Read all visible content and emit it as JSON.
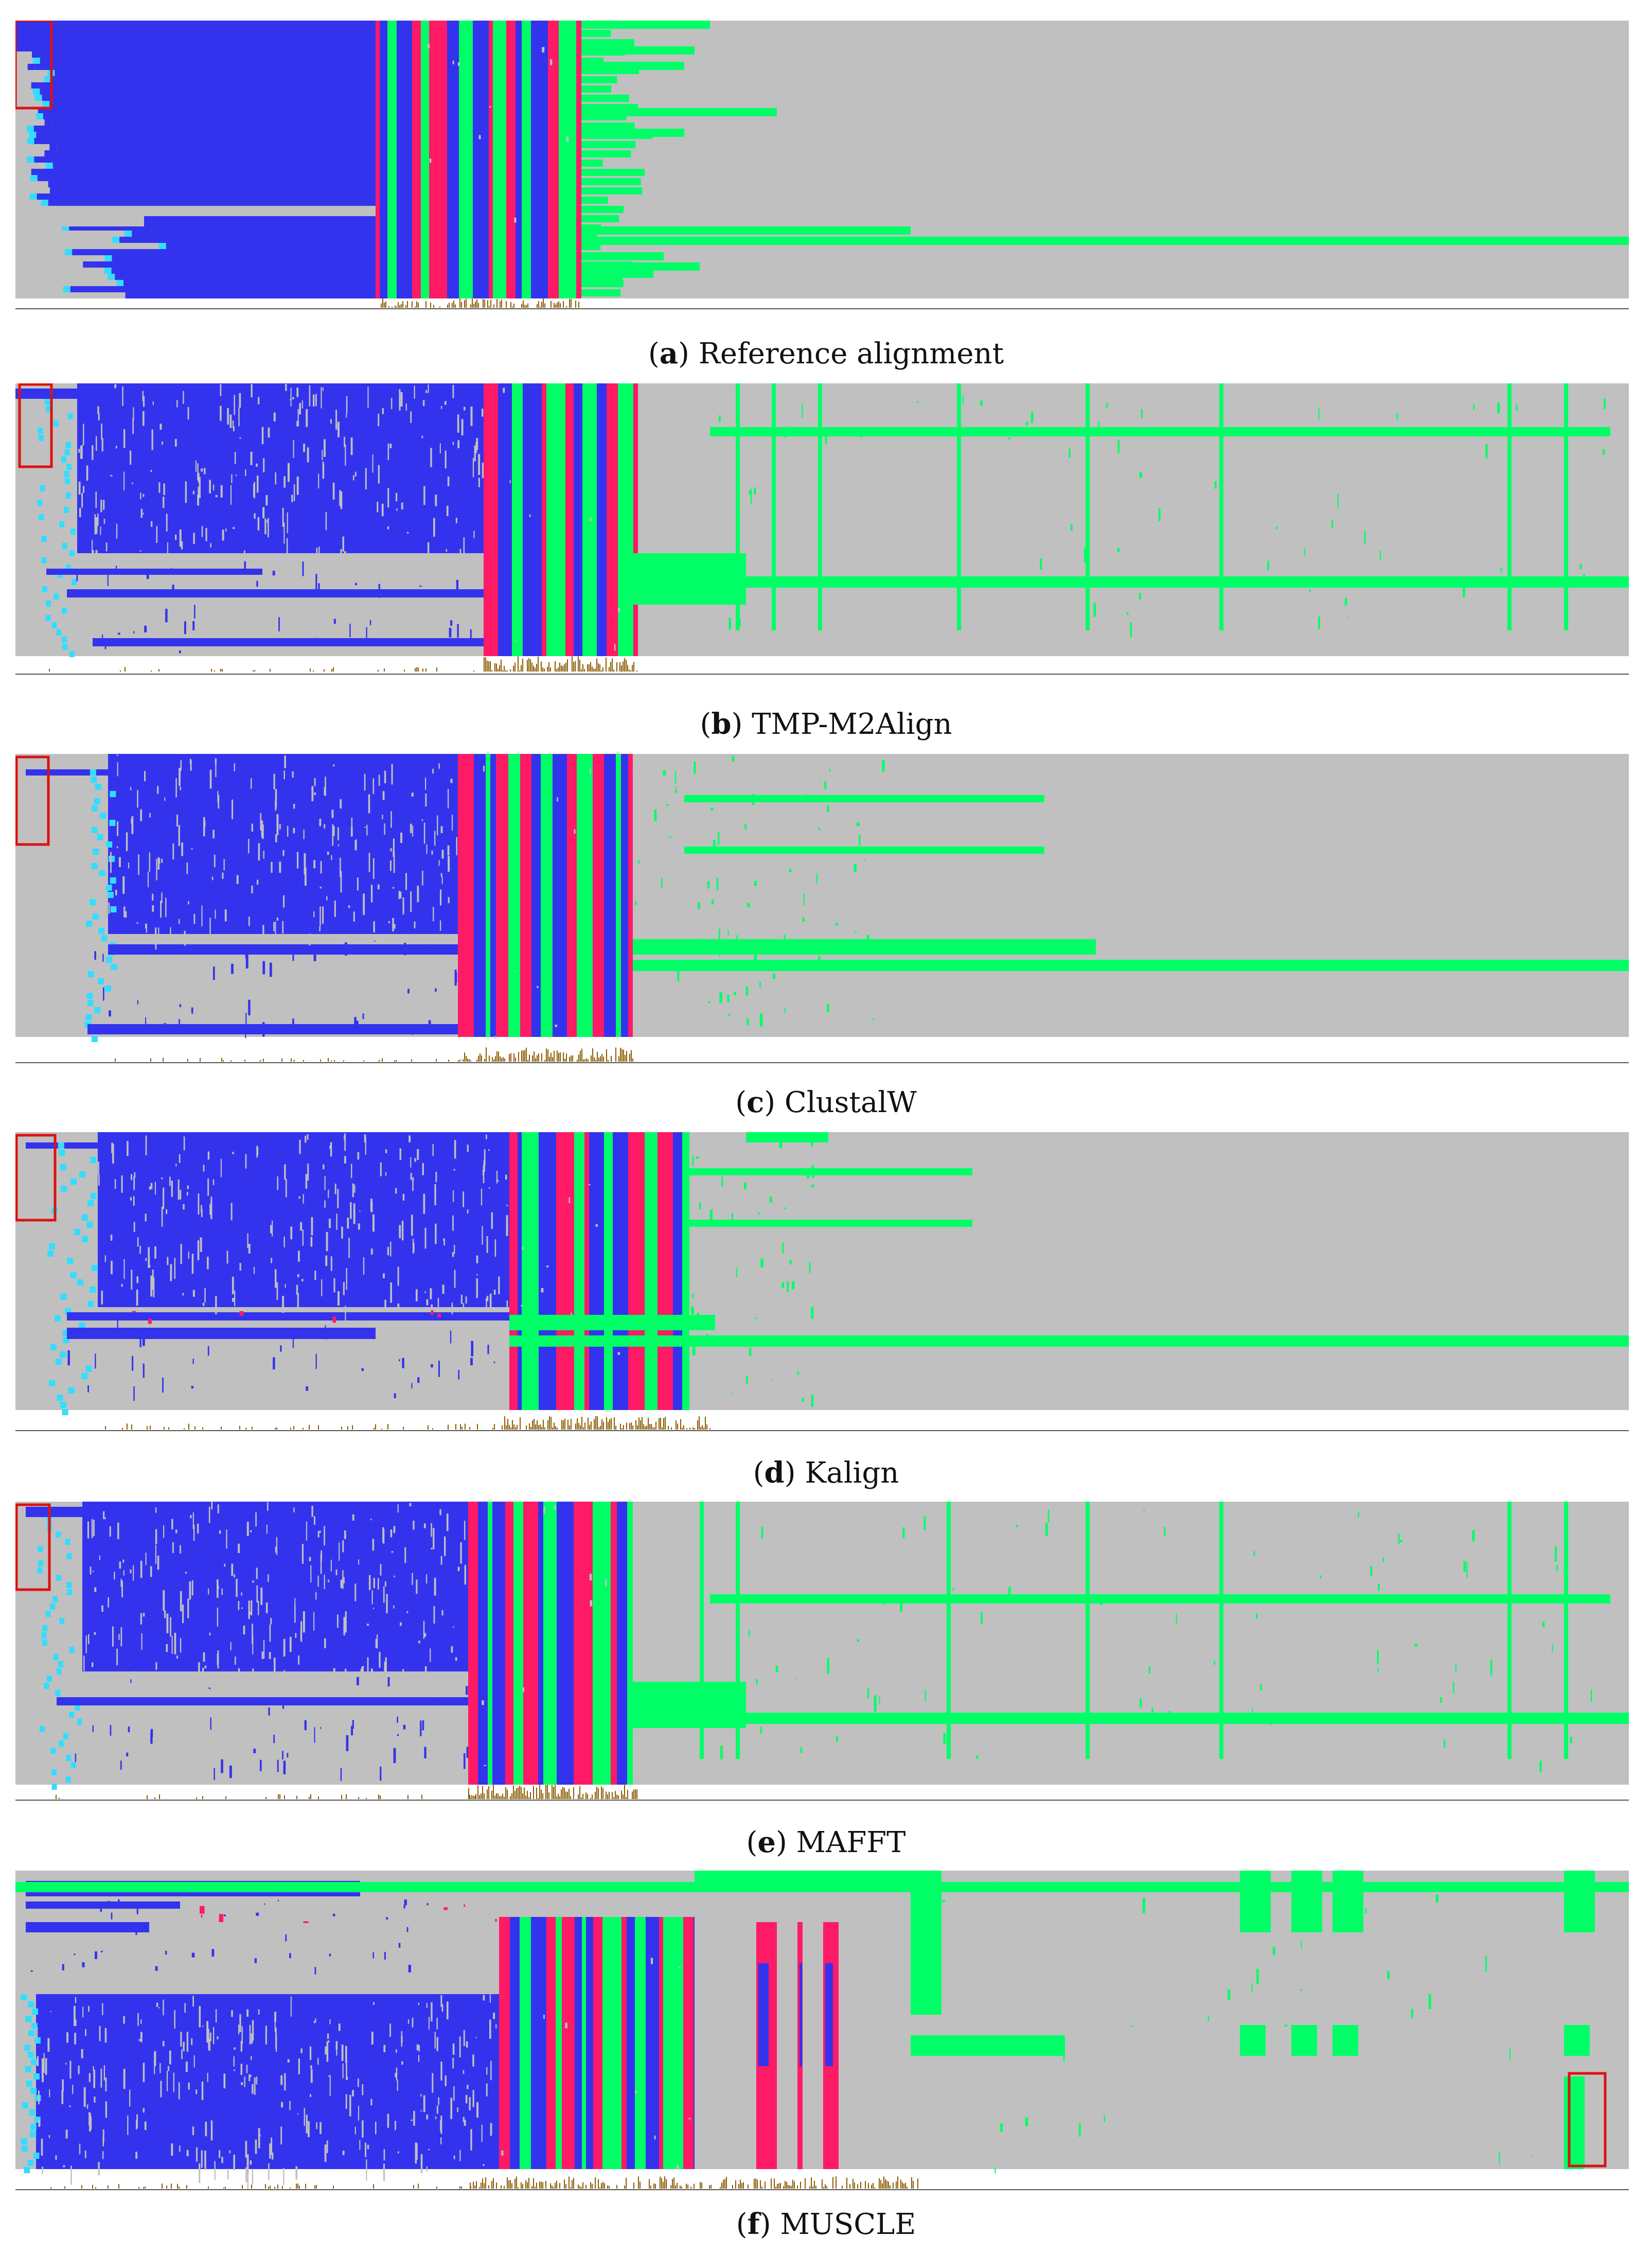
{
  "colors": {
    "background": "#c0c0c0",
    "blue": "#3333ee",
    "cyan": "#33ddff",
    "magenta": "#ff1a66",
    "green": "#00ff66",
    "histogram": "#8b5a00",
    "highlight_box": "#dd1111"
  },
  "panels": [
    {
      "id": "a",
      "letter": "a",
      "name": "Reference alignment"
    },
    {
      "id": "b",
      "letter": "b",
      "name": "TMP-M2Align"
    },
    {
      "id": "c",
      "letter": "c",
      "name": "ClustalW"
    },
    {
      "id": "d",
      "letter": "d",
      "name": "Kalign"
    },
    {
      "id": "e",
      "letter": "e",
      "name": "MAFFT"
    },
    {
      "id": "f",
      "letter": "f",
      "name": "MUSCLE"
    }
  ]
}
